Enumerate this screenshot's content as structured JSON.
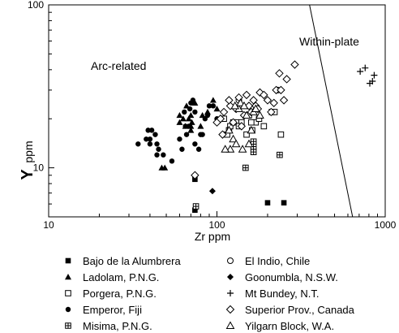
{
  "chart_data": {
    "type": "scatter",
    "title": "",
    "xlabel": "Zr ppm",
    "ylabel_main": "Y",
    "ylabel_unit": "ppm",
    "x_scale": "log",
    "y_scale": "log",
    "xlim": [
      10,
      1000
    ],
    "ylim": [
      5,
      100
    ],
    "x_ticks": [
      10,
      100,
      1000
    ],
    "x_tick_labels": [
      "10",
      "100",
      "1000"
    ],
    "y_ticks": [
      10,
      100
    ],
    "y_tick_labels": [
      "10",
      "100"
    ],
    "grid": false,
    "legend_position": "bottom",
    "boundary_line": [
      [
        355,
        100
      ],
      [
        640,
        5
      ]
    ],
    "annotations": [
      {
        "text": "Arc-related",
        "x": 29,
        "y": 33
      },
      {
        "text": "Within-plate",
        "x": 470,
        "y": 52
      }
    ],
    "series": [
      {
        "name": "Bajo de la Alumbrera",
        "marker": "filled-square",
        "points": [
          [
            74,
            8.5
          ],
          [
            74,
            5.5
          ],
          [
            200,
            6.1
          ],
          [
            250,
            6.1
          ]
        ]
      },
      {
        "name": "Ladolam, P.N.G.",
        "marker": "filled-triangle",
        "points": [
          [
            47,
            10
          ],
          [
            49,
            10
          ],
          [
            60,
            19
          ],
          [
            60,
            21
          ],
          [
            63,
            20
          ],
          [
            65,
            18
          ],
          [
            66,
            24
          ],
          [
            70,
            17
          ],
          [
            70,
            21
          ],
          [
            71,
            19
          ],
          [
            74,
            25
          ],
          [
            80,
            18
          ],
          [
            82,
            21
          ],
          [
            88,
            22
          ],
          [
            95,
            26
          ],
          [
            100,
            23
          ],
          [
            70,
            18
          ],
          [
            68,
            20
          ]
        ]
      },
      {
        "name": "Porgera, P.N.G.",
        "marker": "open-square",
        "points": [
          [
            110,
            20
          ],
          [
            118,
            17
          ],
          [
            120,
            18
          ],
          [
            125,
            19
          ],
          [
            130,
            19
          ],
          [
            140,
            19
          ],
          [
            150,
            16
          ],
          [
            155,
            21
          ],
          [
            162,
            17
          ],
          [
            170,
            19
          ],
          [
            178,
            20
          ],
          [
            190,
            18
          ],
          [
            212,
            22
          ],
          [
            220,
            22
          ],
          [
            240,
            16
          ],
          [
            115,
            16
          ],
          [
            135,
            18
          ],
          [
            160,
            19
          ]
        ]
      },
      {
        "name": "Emperor, Fiji",
        "marker": "filled-circle",
        "points": [
          [
            34,
            14
          ],
          [
            38,
            15
          ],
          [
            39,
            17
          ],
          [
            40,
            14
          ],
          [
            40,
            15
          ],
          [
            41,
            17
          ],
          [
            43,
            16
          ],
          [
            44,
            12
          ],
          [
            44,
            14
          ],
          [
            45,
            13
          ],
          [
            48,
            12
          ],
          [
            54,
            11
          ],
          [
            60,
            15
          ],
          [
            62,
            13
          ],
          [
            64,
            22
          ],
          [
            65,
            18
          ],
          [
            66,
            16
          ],
          [
            68,
            18
          ],
          [
            69,
            23
          ],
          [
            70,
            25
          ],
          [
            72,
            26
          ],
          [
            74,
            22
          ],
          [
            74,
            14
          ],
          [
            78,
            13
          ],
          [
            80,
            16
          ],
          [
            82,
            16
          ],
          [
            85,
            20
          ],
          [
            88,
            21
          ],
          [
            90,
            24
          ],
          [
            95,
            24
          ],
          [
            100,
            20
          ]
        ]
      },
      {
        "name": "Misima, P.N.G.",
        "marker": "boxed-plus",
        "points": [
          [
            75,
            5.8
          ],
          [
            148,
            10
          ],
          [
            165,
            12.5
          ],
          [
            165,
            13.5
          ],
          [
            165,
            14.5
          ],
          [
            236,
            12
          ]
        ]
      },
      {
        "name": "El Indio, Chile",
        "marker": "open-circle",
        "points": [
          [
            135,
            26
          ],
          [
            230,
            30
          ]
        ]
      },
      {
        "name": "Goonumbla, N.S.W.",
        "marker": "filled-diamond",
        "points": [
          [
            94,
            7.2
          ]
        ]
      },
      {
        "name": "Mt Bundey, N.T.",
        "marker": "plus",
        "points": [
          [
            710,
            39
          ],
          [
            760,
            41
          ],
          [
            810,
            33
          ],
          [
            840,
            34
          ],
          [
            860,
            37
          ]
        ]
      },
      {
        "name": "Superior Prov., Canada",
        "marker": "open-diamond",
        "points": [
          [
            74,
            9
          ],
          [
            100,
            19
          ],
          [
            105,
            20
          ],
          [
            110,
            22
          ],
          [
            120,
            24
          ],
          [
            125,
            19
          ],
          [
            130,
            23
          ],
          [
            135,
            27
          ],
          [
            140,
            18
          ],
          [
            145,
            21
          ],
          [
            150,
            28
          ],
          [
            155,
            24
          ],
          [
            160,
            22
          ],
          [
            165,
            26
          ],
          [
            170,
            24
          ],
          [
            175,
            23
          ],
          [
            180,
            29
          ],
          [
            190,
            28
          ],
          [
            200,
            26
          ],
          [
            210,
            22
          ],
          [
            218,
            25
          ],
          [
            225,
            30
          ],
          [
            235,
            38
          ],
          [
            240,
            30
          ],
          [
            250,
            26
          ],
          [
            260,
            35
          ],
          [
            290,
            43
          ],
          [
            108,
            16
          ],
          [
            118,
            26
          ]
        ]
      },
      {
        "name": "Yilgarn Block, W.A.",
        "marker": "open-triangle",
        "points": [
          [
            118,
            17
          ],
          [
            125,
            15
          ],
          [
            130,
            14
          ],
          [
            135,
            23
          ],
          [
            138,
            25
          ],
          [
            142,
            13
          ],
          [
            145,
            24
          ],
          [
            150,
            21
          ],
          [
            155,
            14
          ],
          [
            160,
            17
          ],
          [
            165,
            22
          ],
          [
            170,
            23
          ],
          [
            180,
            21
          ],
          [
            120,
            13
          ],
          [
            128,
            24
          ],
          [
            112,
            13
          ]
        ]
      }
    ]
  }
}
